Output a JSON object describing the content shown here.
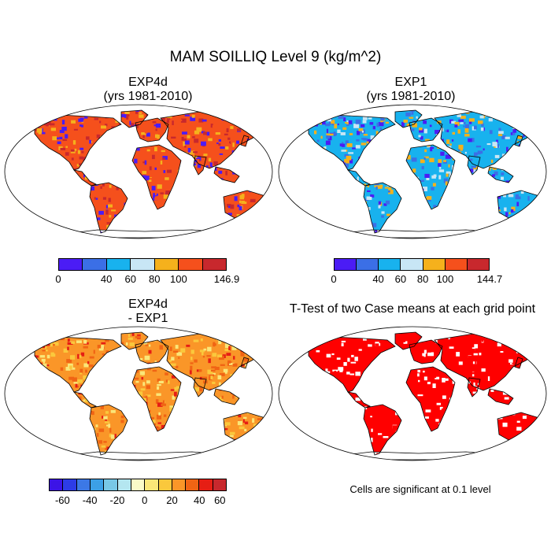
{
  "title": "MAM SOILLIQ Level 9 (kg/m^2)",
  "panels": [
    {
      "title_line1": "EXP4d",
      "title_line2": "(yrs 1981-2010)",
      "colors": [
        "#4b1cf5",
        "#3b6fe6",
        "#18b2ee",
        "#c8e6f5",
        "#f5b11c",
        "#f5501c",
        "#c8282d"
      ],
      "ticks": [
        "0",
        "40",
        "60",
        "80",
        "100",
        "146.9"
      ]
    },
    {
      "title_line1": "EXP1",
      "title_line2": "(yrs 1981-2010)",
      "colors": [
        "#4b1cf5",
        "#3b6fe6",
        "#18b2ee",
        "#c8e6f5",
        "#f5b11c",
        "#f5501c",
        "#c8282d"
      ],
      "ticks": [
        "0",
        "40",
        "60",
        "80",
        "100",
        "144.7"
      ]
    },
    {
      "title_line1": "EXP4d",
      "title_line2": "- EXP1",
      "colors": [
        "#3c14e6",
        "#2d3ce6",
        "#3c78e6",
        "#3ca0e6",
        "#78c8e6",
        "#b4e6f0",
        "#fafac8",
        "#fae678",
        "#fac83c",
        "#fa9628",
        "#f06414",
        "#e61e14",
        "#c8282d"
      ],
      "ticks": [
        "-60",
        "-40",
        "-20",
        "0",
        "20",
        "40",
        "60"
      ]
    },
    {
      "title_line1": "T-Test of two Case means at each grid point",
      "title_line2": "",
      "note": "Cells are significant at 0.1 level"
    }
  ]
}
